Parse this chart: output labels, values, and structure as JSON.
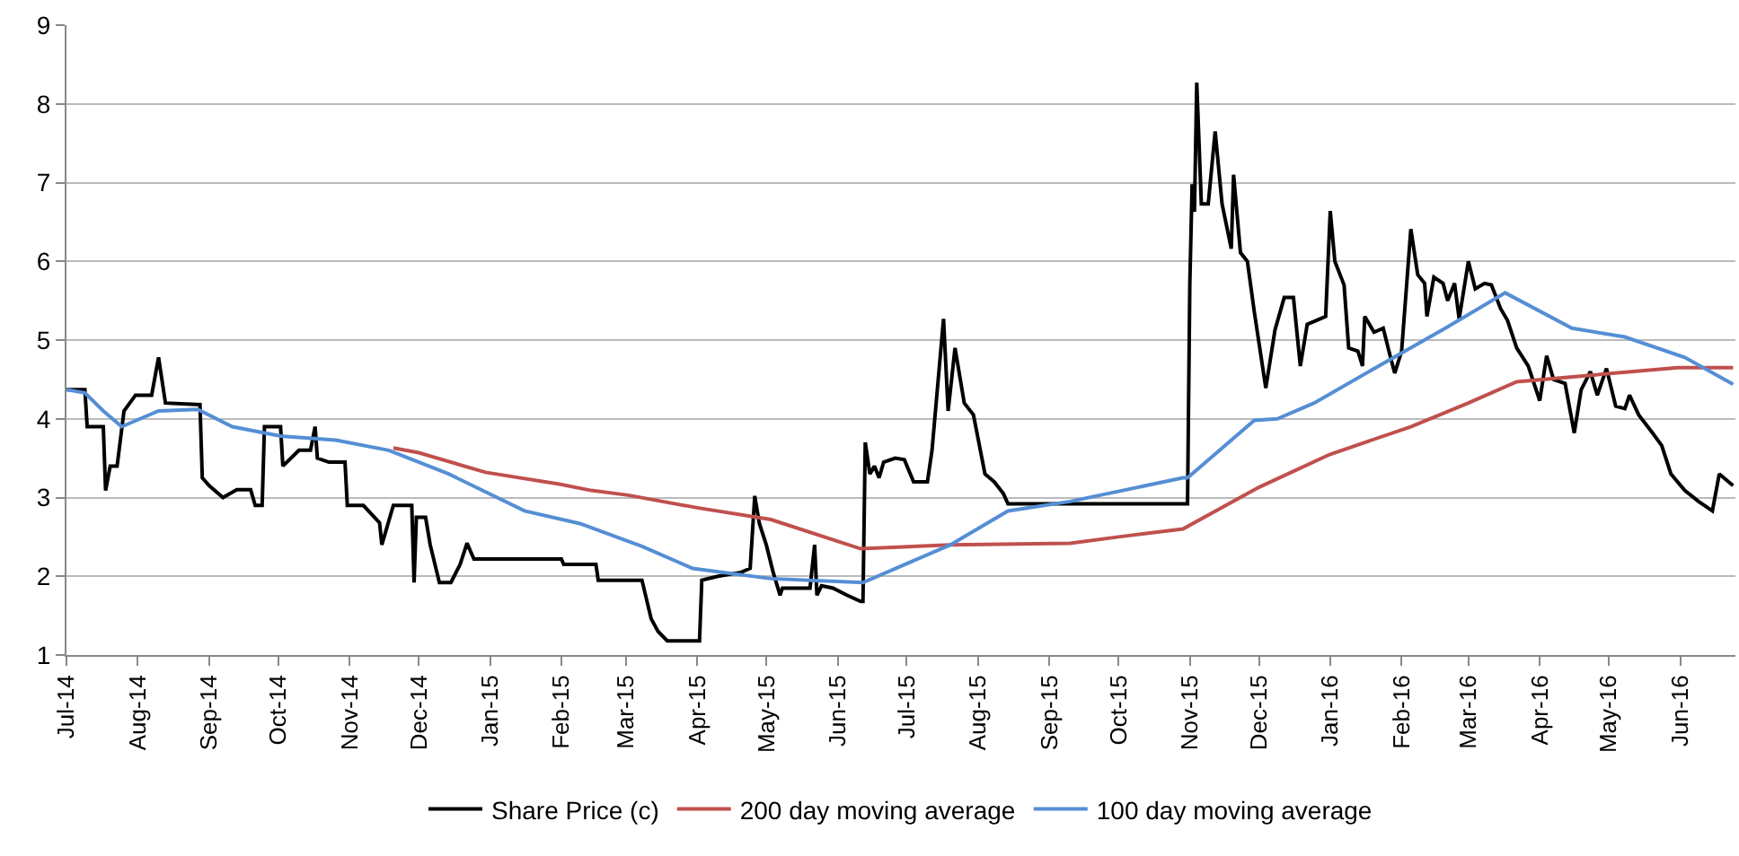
{
  "chart_data": {
    "type": "line",
    "xlim": [
      "2014-07-01",
      "2016-06-25"
    ],
    "ylim": [
      1,
      9
    ],
    "yticks": [
      1,
      2,
      3,
      4,
      5,
      6,
      7,
      8,
      9
    ],
    "xticks": [
      {
        "value": "2014-07-01",
        "label": "Jul-14"
      },
      {
        "value": "2014-08-01",
        "label": "Aug-14"
      },
      {
        "value": "2014-09-01",
        "label": "Sep-14"
      },
      {
        "value": "2014-10-01",
        "label": "Oct-14"
      },
      {
        "value": "2014-11-01",
        "label": "Nov-14"
      },
      {
        "value": "2014-12-01",
        "label": "Dec-14"
      },
      {
        "value": "2015-01-01",
        "label": "Jan-15"
      },
      {
        "value": "2015-02-01",
        "label": "Feb-15"
      },
      {
        "value": "2015-03-01",
        "label": "Mar-15"
      },
      {
        "value": "2015-04-01",
        "label": "Apr-15"
      },
      {
        "value": "2015-05-01",
        "label": "May-15"
      },
      {
        "value": "2015-06-01",
        "label": "Jun-15"
      },
      {
        "value": "2015-07-01",
        "label": "Jul-15"
      },
      {
        "value": "2015-08-01",
        "label": "Aug-15"
      },
      {
        "value": "2015-09-01",
        "label": "Sep-15"
      },
      {
        "value": "2015-10-01",
        "label": "Oct-15"
      },
      {
        "value": "2015-11-01",
        "label": "Nov-15"
      },
      {
        "value": "2015-12-01",
        "label": "Dec-15"
      },
      {
        "value": "2016-01-01",
        "label": "Jan-16"
      },
      {
        "value": "2016-02-01",
        "label": "Feb-16"
      },
      {
        "value": "2016-03-01",
        "label": "Mar-16"
      },
      {
        "value": "2016-04-01",
        "label": "Apr-16"
      },
      {
        "value": "2016-05-01",
        "label": "May-16"
      },
      {
        "value": "2016-06-01",
        "label": "Jun-16"
      }
    ],
    "grid": "y",
    "legend": "bottom",
    "marker": "none",
    "line_style": "solid",
    "series": [
      {
        "name": "Share Price (c)",
        "color": "#000000",
        "x": [
          "2014-07-01",
          "2014-07-09",
          "2014-07-10",
          "2014-07-17",
          "2014-07-18",
          "2014-07-20",
          "2014-07-23",
          "2014-07-26",
          "2014-07-31",
          "2014-08-07",
          "2014-08-10",
          "2014-08-13",
          "2014-08-28",
          "2014-08-29",
          "2014-09-01",
          "2014-09-07",
          "2014-09-13",
          "2014-09-19",
          "2014-09-21",
          "2014-09-24",
          "2014-09-25",
          "2014-10-02",
          "2014-10-03",
          "2014-10-10",
          "2014-10-15",
          "2014-10-17",
          "2014-10-18",
          "2014-10-23",
          "2014-10-30",
          "2014-10-31",
          "2014-11-07",
          "2014-11-14",
          "2014-11-15",
          "2014-11-20",
          "2014-11-28",
          "2014-11-29",
          "2014-11-30",
          "2014-12-04",
          "2014-12-06",
          "2014-12-10",
          "2014-12-15",
          "2014-12-19",
          "2014-12-22",
          "2014-12-25",
          "2015-02-01",
          "2015-02-02",
          "2015-02-16",
          "2015-02-17",
          "2015-03-08",
          "2015-03-12",
          "2015-03-15",
          "2015-03-19",
          "2015-04-02",
          "2015-04-03",
          "2015-04-10",
          "2015-04-20",
          "2015-04-24",
          "2015-04-26",
          "2015-04-28",
          "2015-05-01",
          "2015-05-04",
          "2015-05-07",
          "2015-05-08",
          "2015-05-20",
          "2015-05-22",
          "2015-05-23",
          "2015-05-25",
          "2015-05-30",
          "2015-06-05",
          "2015-06-11",
          "2015-06-12",
          "2015-06-13",
          "2015-06-15",
          "2015-06-17",
          "2015-06-19",
          "2015-06-21",
          "2015-06-26",
          "2015-06-30",
          "2015-07-04",
          "2015-07-10",
          "2015-07-12",
          "2015-07-17",
          "2015-07-19",
          "2015-07-22",
          "2015-07-26",
          "2015-07-30",
          "2015-08-04",
          "2015-08-08",
          "2015-08-12",
          "2015-08-14",
          "2015-10-31",
          "2015-11-01",
          "2015-11-02",
          "2015-11-03",
          "2015-11-04",
          "2015-11-06",
          "2015-11-09",
          "2015-11-12",
          "2015-11-15",
          "2015-11-19",
          "2015-11-20",
          "2015-11-23",
          "2015-11-26",
          "2015-11-29",
          "2015-12-04",
          "2015-12-08",
          "2015-12-12",
          "2015-12-16",
          "2015-12-19",
          "2015-12-22",
          "2015-12-26",
          "2015-12-30",
          "2016-01-01",
          "2016-01-03",
          "2016-01-07",
          "2016-01-09",
          "2016-01-13",
          "2016-01-15",
          "2016-01-16",
          "2016-01-20",
          "2016-01-24",
          "2016-01-27",
          "2016-01-29",
          "2016-02-01",
          "2016-02-05",
          "2016-02-08",
          "2016-02-11",
          "2016-02-12",
          "2016-02-15",
          "2016-02-19",
          "2016-02-21",
          "2016-02-24",
          "2016-02-26",
          "2016-03-01",
          "2016-03-04",
          "2016-03-08",
          "2016-03-11",
          "2016-03-15",
          "2016-03-18",
          "2016-03-22",
          "2016-03-27",
          "2016-04-01",
          "2016-04-04",
          "2016-04-07",
          "2016-04-12",
          "2016-04-16",
          "2016-04-19",
          "2016-04-23",
          "2016-04-26",
          "2016-04-30",
          "2016-05-04",
          "2016-05-08",
          "2016-05-10",
          "2016-05-14",
          "2016-05-20",
          "2016-05-24",
          "2016-05-28",
          "2016-06-03",
          "2016-06-09",
          "2016-06-15",
          "2016-06-18",
          "2016-06-24"
        ],
        "values": [
          4.37,
          4.37,
          3.9,
          3.9,
          3.09,
          3.4,
          3.4,
          4.1,
          4.3,
          4.3,
          4.78,
          4.2,
          4.18,
          3.25,
          3.15,
          3.0,
          3.1,
          3.1,
          2.9,
          2.9,
          3.9,
          3.9,
          3.4,
          3.6,
          3.6,
          3.9,
          3.5,
          3.45,
          3.45,
          2.9,
          2.9,
          2.68,
          2.4,
          2.9,
          2.9,
          1.92,
          2.75,
          2.75,
          2.4,
          1.92,
          1.92,
          2.15,
          2.42,
          2.22,
          2.22,
          2.15,
          2.15,
          1.95,
          1.95,
          1.46,
          1.3,
          1.18,
          1.18,
          1.95,
          2.0,
          2.05,
          2.1,
          3.02,
          2.67,
          2.4,
          2.05,
          1.76,
          1.85,
          1.85,
          2.4,
          1.76,
          1.88,
          1.85,
          1.76,
          1.68,
          1.68,
          3.7,
          3.3,
          3.4,
          3.25,
          3.45,
          3.5,
          3.48,
          3.2,
          3.2,
          3.6,
          5.27,
          4.1,
          4.9,
          4.2,
          4.05,
          3.3,
          3.2,
          3.05,
          2.92,
          2.92,
          5.72,
          6.98,
          6.63,
          8.27,
          6.73,
          6.73,
          7.65,
          6.73,
          6.16,
          7.1,
          6.11,
          6.0,
          5.36,
          4.39,
          5.13,
          5.54,
          5.54,
          4.67,
          5.2,
          5.25,
          5.3,
          6.64,
          6.0,
          5.7,
          4.9,
          4.86,
          4.67,
          5.3,
          5.1,
          5.15,
          4.8,
          4.58,
          4.86,
          6.41,
          5.83,
          5.72,
          5.3,
          5.8,
          5.72,
          5.5,
          5.72,
          5.27,
          6.0,
          5.65,
          5.72,
          5.7,
          5.4,
          5.25,
          4.9,
          4.67,
          4.23,
          4.8,
          4.5,
          4.45,
          3.82,
          4.37,
          4.6,
          4.3,
          4.64,
          4.16,
          4.13,
          4.3,
          4.05,
          3.82,
          3.66,
          3.3,
          3.09,
          2.95,
          2.83,
          3.3,
          3.15
        ]
      },
      {
        "name": "200 day moving average",
        "color": "#c0504d",
        "x": [
          "2014-11-20",
          "2014-12-01",
          "2014-12-30",
          "2015-01-31",
          "2015-02-14",
          "2015-03-02",
          "2015-04-01",
          "2015-05-03",
          "2015-06-11",
          "2015-07-20",
          "2015-09-10",
          "2015-10-01",
          "2015-10-29",
          "2015-12-01",
          "2016-01-01",
          "2016-02-05",
          "2016-03-01",
          "2016-03-22",
          "2016-04-22",
          "2016-05-31",
          "2016-06-24"
        ],
        "values": [
          3.63,
          3.57,
          3.32,
          3.17,
          3.09,
          3.03,
          2.87,
          2.72,
          2.35,
          2.4,
          2.42,
          2.5,
          2.6,
          3.13,
          3.55,
          3.9,
          4.2,
          4.47,
          4.55,
          4.65,
          4.65
        ]
      },
      {
        "name": "100 day moving average",
        "color": "#558ed5",
        "x": [
          "2014-07-01",
          "2014-07-09",
          "2014-07-17",
          "2014-07-25",
          "2014-08-10",
          "2014-08-27",
          "2014-09-11",
          "2014-10-02",
          "2014-10-26",
          "2014-11-18",
          "2014-12-14",
          "2015-01-16",
          "2015-02-09",
          "2015-03-08",
          "2015-03-30",
          "2015-05-03",
          "2015-06-12",
          "2015-07-20",
          "2015-08-14",
          "2015-09-10",
          "2015-10-29",
          "2015-10-31",
          "2015-11-29",
          "2015-12-09",
          "2015-12-25",
          "2016-01-22",
          "2016-02-20",
          "2016-03-17",
          "2016-04-15",
          "2016-05-08",
          "2016-06-03",
          "2016-06-24"
        ],
        "values": [
          4.37,
          4.33,
          4.1,
          3.9,
          4.1,
          4.12,
          3.9,
          3.78,
          3.73,
          3.6,
          3.3,
          2.83,
          2.67,
          2.38,
          2.1,
          1.97,
          1.92,
          2.4,
          2.83,
          2.95,
          3.25,
          3.25,
          3.98,
          4.0,
          4.2,
          4.67,
          5.15,
          5.6,
          5.15,
          5.04,
          4.78,
          4.44
        ]
      }
    ]
  }
}
